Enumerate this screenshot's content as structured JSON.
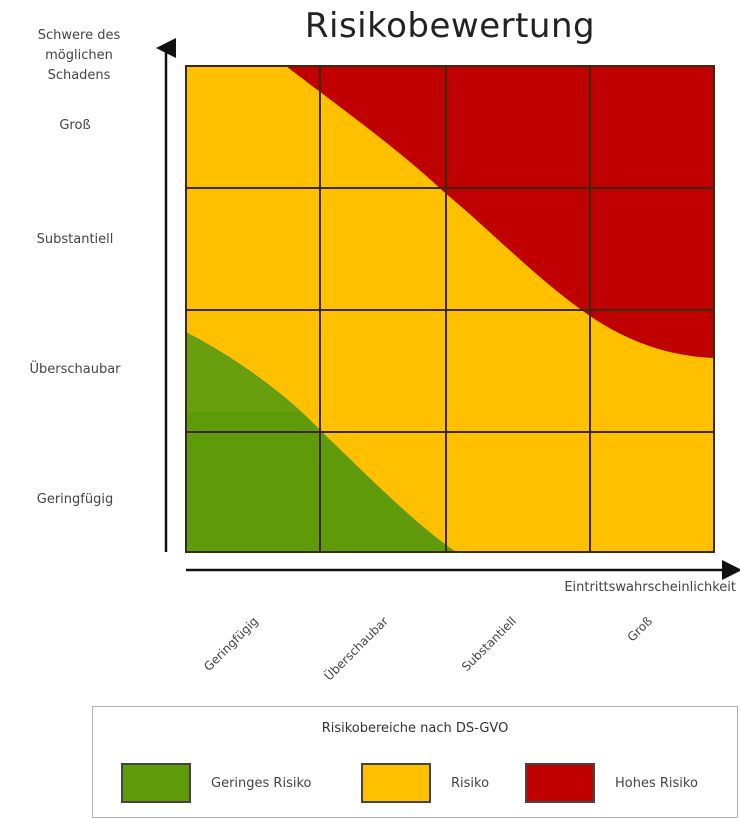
{
  "title": "Risikobewertung",
  "y_axis": {
    "title": "Schwere des\nmöglichen\nSchadens",
    "ticks": [
      "Groß",
      "Substantiell",
      "Überschaubar",
      "Geringfügig"
    ]
  },
  "x_axis": {
    "title": "Eintrittswahrscheinlichkeit",
    "ticks": [
      "Geringfügig",
      "Überschaubar",
      "Substantiell",
      "Groß"
    ]
  },
  "legend": {
    "title": "Risikobereiche nach DS-GVO",
    "items": [
      {
        "label": "Geringes Risiko",
        "color": "#5f9a0a"
      },
      {
        "label": "Risiko",
        "color": "#ffc000"
      },
      {
        "label": "Hohes Risiko",
        "color": "#c00000"
      }
    ]
  },
  "colors": {
    "low": "#5f9a0a",
    "medium": "#ffc000",
    "high": "#c00000",
    "grid": "#3a2a10",
    "axis": "#111111"
  }
}
